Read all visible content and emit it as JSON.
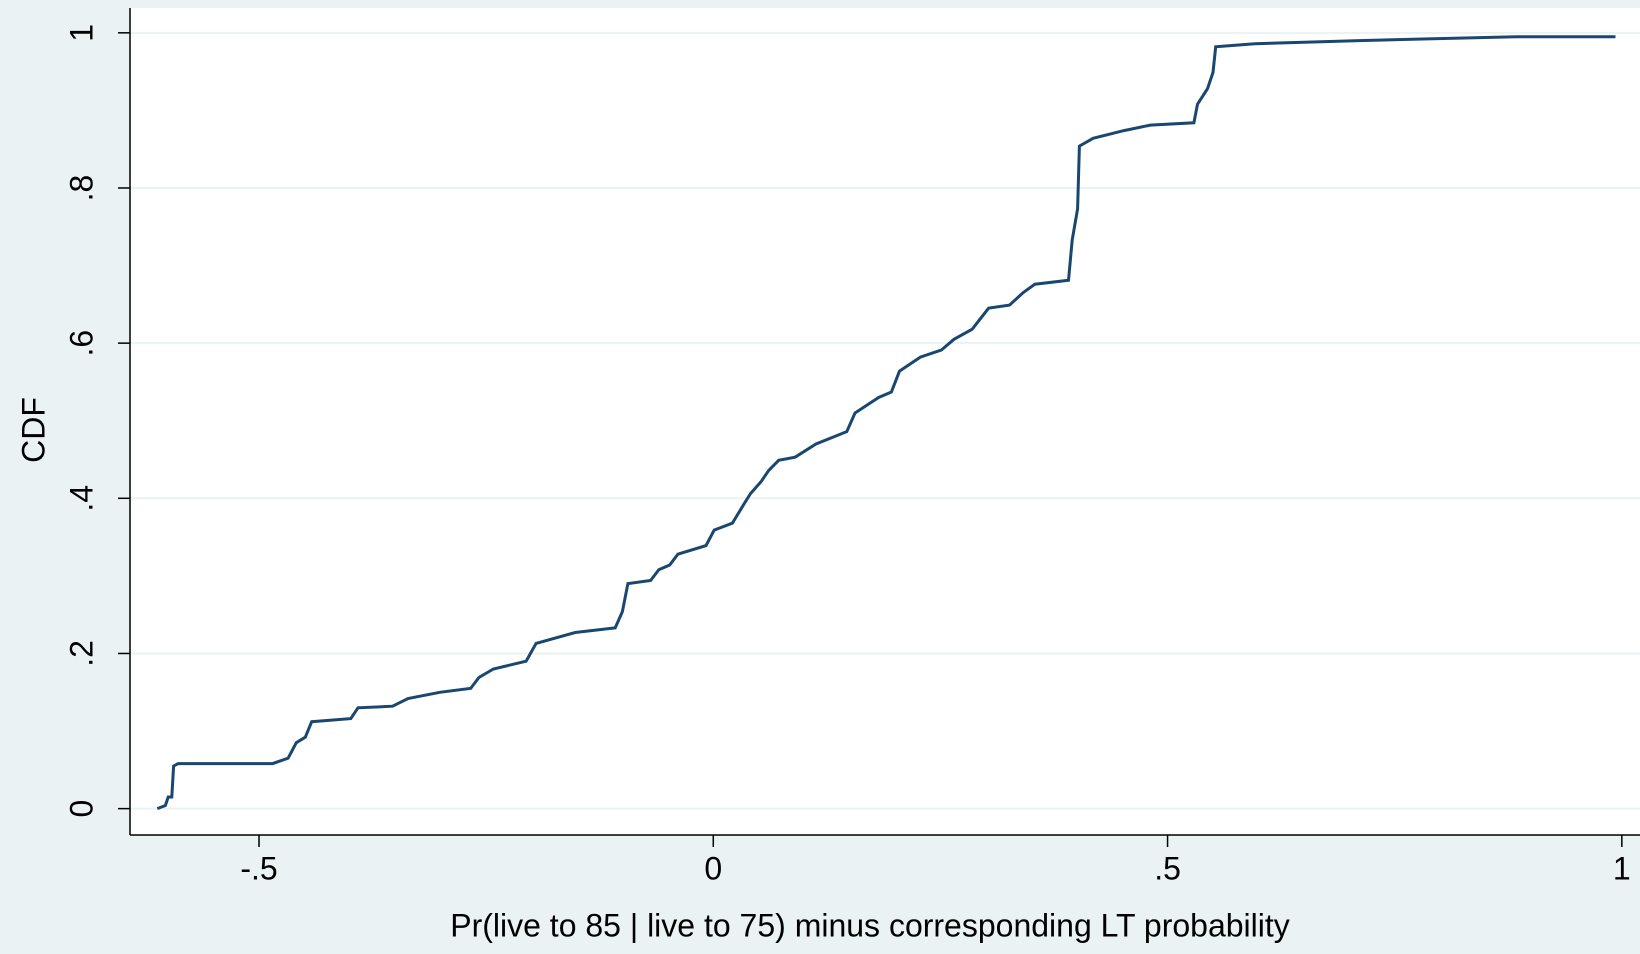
{
  "chart_data": {
    "type": "line",
    "x_label": "Pr(live to 85 | live to 75) minus corresponding LT probability",
    "y_label": "CDF",
    "x": [
      -0.612,
      -0.603,
      -0.6,
      -0.596,
      -0.594,
      -0.589,
      -0.485,
      -0.468,
      -0.459,
      -0.449,
      -0.442,
      -0.399,
      -0.391,
      -0.353,
      -0.336,
      -0.301,
      -0.267,
      -0.258,
      -0.242,
      -0.206,
      -0.195,
      -0.152,
      -0.108,
      -0.1,
      -0.094,
      -0.069,
      -0.06,
      -0.048,
      -0.039,
      -0.008,
      0.001,
      0.021,
      0.035,
      0.041,
      0.053,
      0.061,
      0.072,
      0.09,
      0.113,
      0.147,
      0.156,
      0.182,
      0.196,
      0.205,
      0.228,
      0.251,
      0.265,
      0.285,
      0.303,
      0.326,
      0.341,
      0.354,
      0.391,
      0.395,
      0.401,
      0.403,
      0.418,
      0.452,
      0.481,
      0.529,
      0.533,
      0.544,
      0.55,
      0.553,
      0.596,
      0.711,
      0.884,
      0.993
    ],
    "series": [
      {
        "name": "CDF",
        "color": "#1a476f",
        "values": [
          0,
          0.004,
          0.015,
          0.015,
          0.055,
          0.058,
          0.058,
          0.065,
          0.085,
          0.092,
          0.112,
          0.116,
          0.13,
          0.132,
          0.142,
          0.15,
          0.155,
          0.169,
          0.18,
          0.19,
          0.213,
          0.227,
          0.233,
          0.254,
          0.29,
          0.294,
          0.308,
          0.314,
          0.328,
          0.339,
          0.359,
          0.368,
          0.395,
          0.406,
          0.422,
          0.436,
          0.449,
          0.453,
          0.47,
          0.486,
          0.51,
          0.53,
          0.537,
          0.564,
          0.582,
          0.591,
          0.605,
          0.618,
          0.645,
          0.649,
          0.665,
          0.676,
          0.681,
          0.733,
          0.773,
          0.854,
          0.864,
          0.874,
          0.881,
          0.884,
          0.908,
          0.928,
          0.949,
          0.982,
          0.986,
          0.99,
          0.995,
          0.995
        ]
      }
    ],
    "xlim": [
      -0.642,
      1.02
    ],
    "ylim": [
      -0.034,
      1.032
    ],
    "xticks": [
      {
        "value": -0.5,
        "label": "-.5"
      },
      0,
      {
        "value": 0.5,
        "label": ".5"
      },
      1
    ],
    "yticks": [
      0,
      {
        "value": 0.2,
        "label": ".2"
      },
      {
        "value": 0.4,
        "label": ".4"
      },
      {
        "value": 0.6,
        "label": ".6"
      },
      {
        "value": 0.8,
        "label": ".8"
      },
      1
    ],
    "grid": true
  }
}
